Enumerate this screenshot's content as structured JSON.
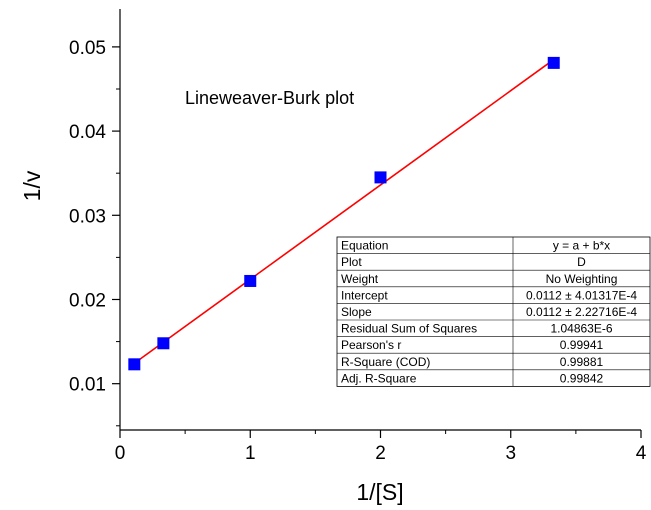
{
  "chart_data": {
    "type": "scatter",
    "title": "Lineweaver-Burk plot",
    "xlabel": "1/[S]",
    "ylabel": "1/v",
    "xlim": [
      0,
      4
    ],
    "ylim": [
      0.0045,
      0.0545
    ],
    "x_ticks": [
      "0",
      "1",
      "2",
      "3",
      "4"
    ],
    "y_ticks": [
      "0.01",
      "0.02",
      "0.03",
      "0.04",
      "0.05"
    ],
    "grid": false,
    "marker_color": "#0000ff",
    "fit_color": "#ff0000",
    "points": [
      {
        "x": 0.11,
        "y": 0.0123
      },
      {
        "x": 0.333,
        "y": 0.0148
      },
      {
        "x": 1.0,
        "y": 0.0222
      },
      {
        "x": 2.0,
        "y": 0.0345
      },
      {
        "x": 3.33,
        "y": 0.0481
      }
    ],
    "fit": {
      "intercept": 0.0112,
      "slope": 0.0112,
      "x_range": [
        0.11,
        3.33
      ]
    },
    "stats_table": [
      [
        "Equation",
        "y = a + b*x"
      ],
      [
        "Plot",
        "D"
      ],
      [
        "Weight",
        "No Weighting"
      ],
      [
        "Intercept",
        "0.0112 ± 4.01317E-4"
      ],
      [
        "Slope",
        "0.0112 ± 2.22716E-4"
      ],
      [
        "Residual Sum of Squares",
        "1.04863E-6"
      ],
      [
        "Pearson's r",
        "0.99941"
      ],
      [
        "R-Square (COD)",
        "0.99881"
      ],
      [
        "Adj. R-Square",
        "0.99842"
      ]
    ]
  }
}
